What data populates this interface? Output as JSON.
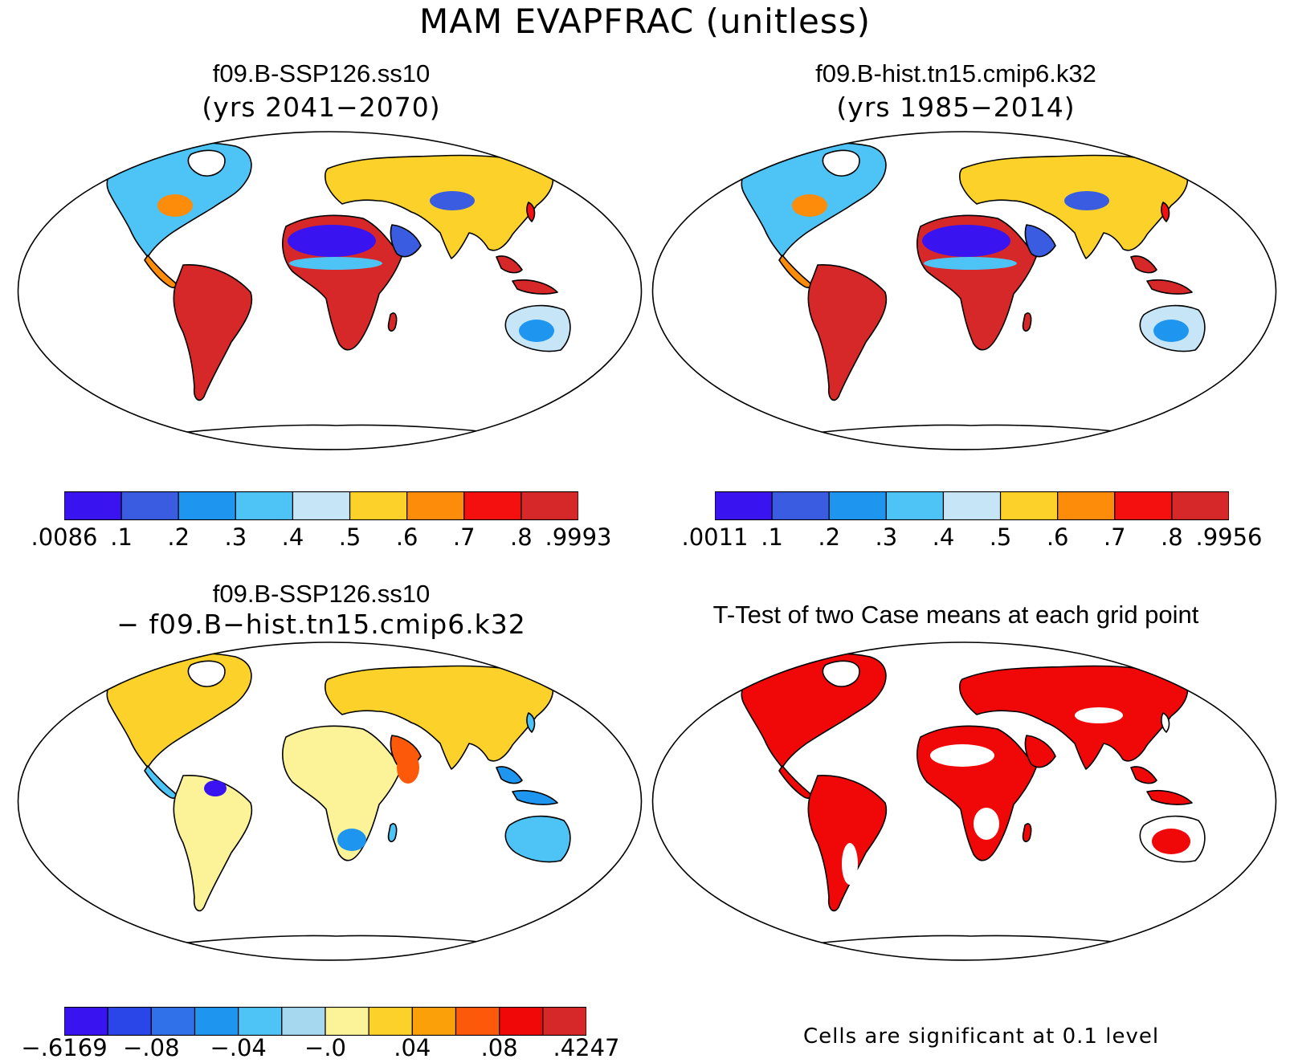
{
  "title": "MAM EVAPFRAC (unitless)",
  "panels": [
    {
      "title": "f09.B-SSP126.ss10",
      "subtitle": "(yrs 2041−2070)",
      "colorbar": {
        "colors": [
          "#3a14f0",
          "#3a5ce0",
          "#1e96f0",
          "#4ec3f5",
          "#c6e6f7",
          "#fcd22a",
          "#fc8c0a",
          "#f51010",
          "#d62828"
        ],
        "labels": [
          ".0086",
          ".1",
          ".2",
          ".3",
          ".4",
          ".5",
          ".6",
          ".7",
          ".8",
          ".9993"
        ]
      }
    },
    {
      "title": "f09.B-hist.tn15.cmip6.k32",
      "subtitle": "(yrs 1985−2014)",
      "colorbar": {
        "colors": [
          "#3a14f0",
          "#3a5ce0",
          "#1e96f0",
          "#4ec3f5",
          "#c6e6f7",
          "#fcd22a",
          "#fc8c0a",
          "#f51010",
          "#d62828"
        ],
        "labels": [
          ".0011",
          ".1",
          ".2",
          ".3",
          ".4",
          ".5",
          ".6",
          ".7",
          ".8",
          ".9956"
        ]
      }
    },
    {
      "title": "f09.B-SSP126.ss10",
      "subtitle": "− f09.B−hist.tn15.cmip6.k32",
      "colorbar": {
        "colors": [
          "#3a14f0",
          "#2a46e8",
          "#3070e8",
          "#1e96f0",
          "#4ec3f5",
          "#a6d8f0",
          "#fcf398",
          "#fcd22a",
          "#fca00a",
          "#fc5a0a",
          "#f00808",
          "#d62828"
        ],
        "labels": [
          "−.6169",
          "−.08",
          "−.04",
          "−.0",
          ".04",
          ".08",
          ".4247"
        ]
      }
    },
    {
      "title": "T-Test of two Case means at each grid point",
      "note": "Cells are significant at 0.1 level",
      "colors": {
        "significant": "#f00808"
      }
    }
  ]
}
